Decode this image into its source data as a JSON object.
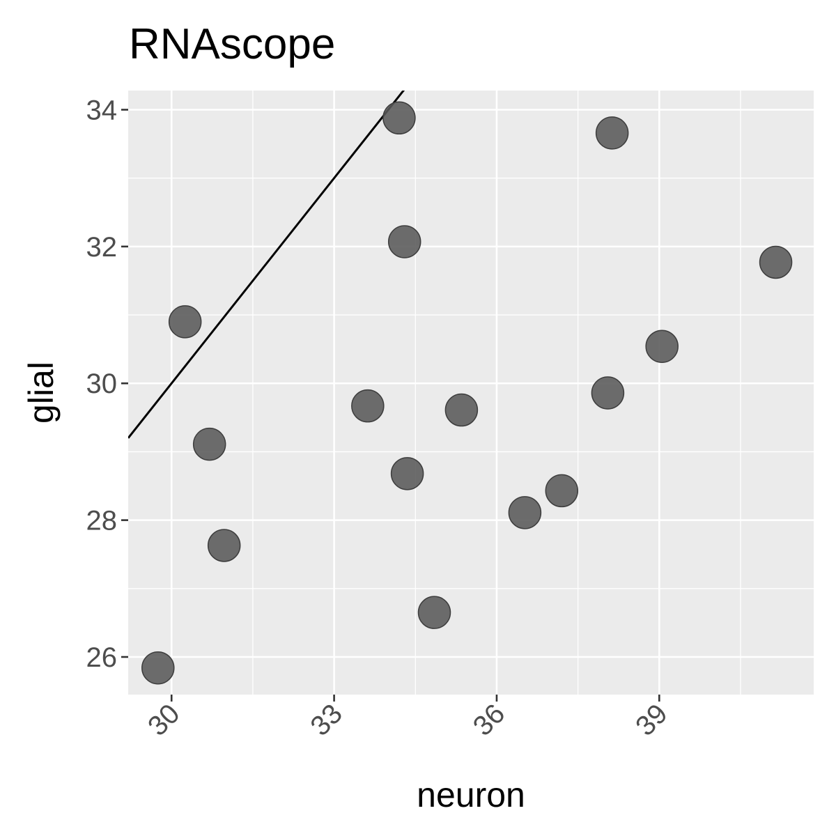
{
  "chart_data": {
    "type": "scatter",
    "title": "RNAscope",
    "xlabel": "neuron",
    "ylabel": "glial",
    "xlim": [
      29.2,
      41.85
    ],
    "ylim": [
      25.45,
      34.28
    ],
    "x_ticks": [
      30,
      33,
      36,
      39
    ],
    "x_tick_labels": [
      "30",
      "33",
      "36",
      "39"
    ],
    "y_ticks": [
      26,
      28,
      30,
      32,
      34
    ],
    "y_tick_labels": [
      "26",
      "28",
      "30",
      "32",
      "34"
    ],
    "grid": true,
    "legend": "none",
    "colors": {
      "panel": "#ebebeb",
      "grid": "#ffffff",
      "point": "#595959",
      "line": "#000000"
    },
    "reference_line": {
      "type": "identity",
      "slope": 1,
      "intercept": 0
    },
    "points": [
      {
        "x": 29.75,
        "y": 25.84
      },
      {
        "x": 30.25,
        "y": 30.9
      },
      {
        "x": 30.7,
        "y": 29.11
      },
      {
        "x": 30.97,
        "y": 27.63
      },
      {
        "x": 33.62,
        "y": 29.67
      },
      {
        "x": 34.2,
        "y": 33.88
      },
      {
        "x": 34.3,
        "y": 32.07
      },
      {
        "x": 34.35,
        "y": 28.68
      },
      {
        "x": 34.85,
        "y": 26.65
      },
      {
        "x": 35.35,
        "y": 29.61
      },
      {
        "x": 36.52,
        "y": 28.11
      },
      {
        "x": 37.2,
        "y": 28.43
      },
      {
        "x": 38.05,
        "y": 29.86
      },
      {
        "x": 38.13,
        "y": 33.66
      },
      {
        "x": 39.05,
        "y": 30.54
      },
      {
        "x": 41.15,
        "y": 31.77
      }
    ]
  }
}
